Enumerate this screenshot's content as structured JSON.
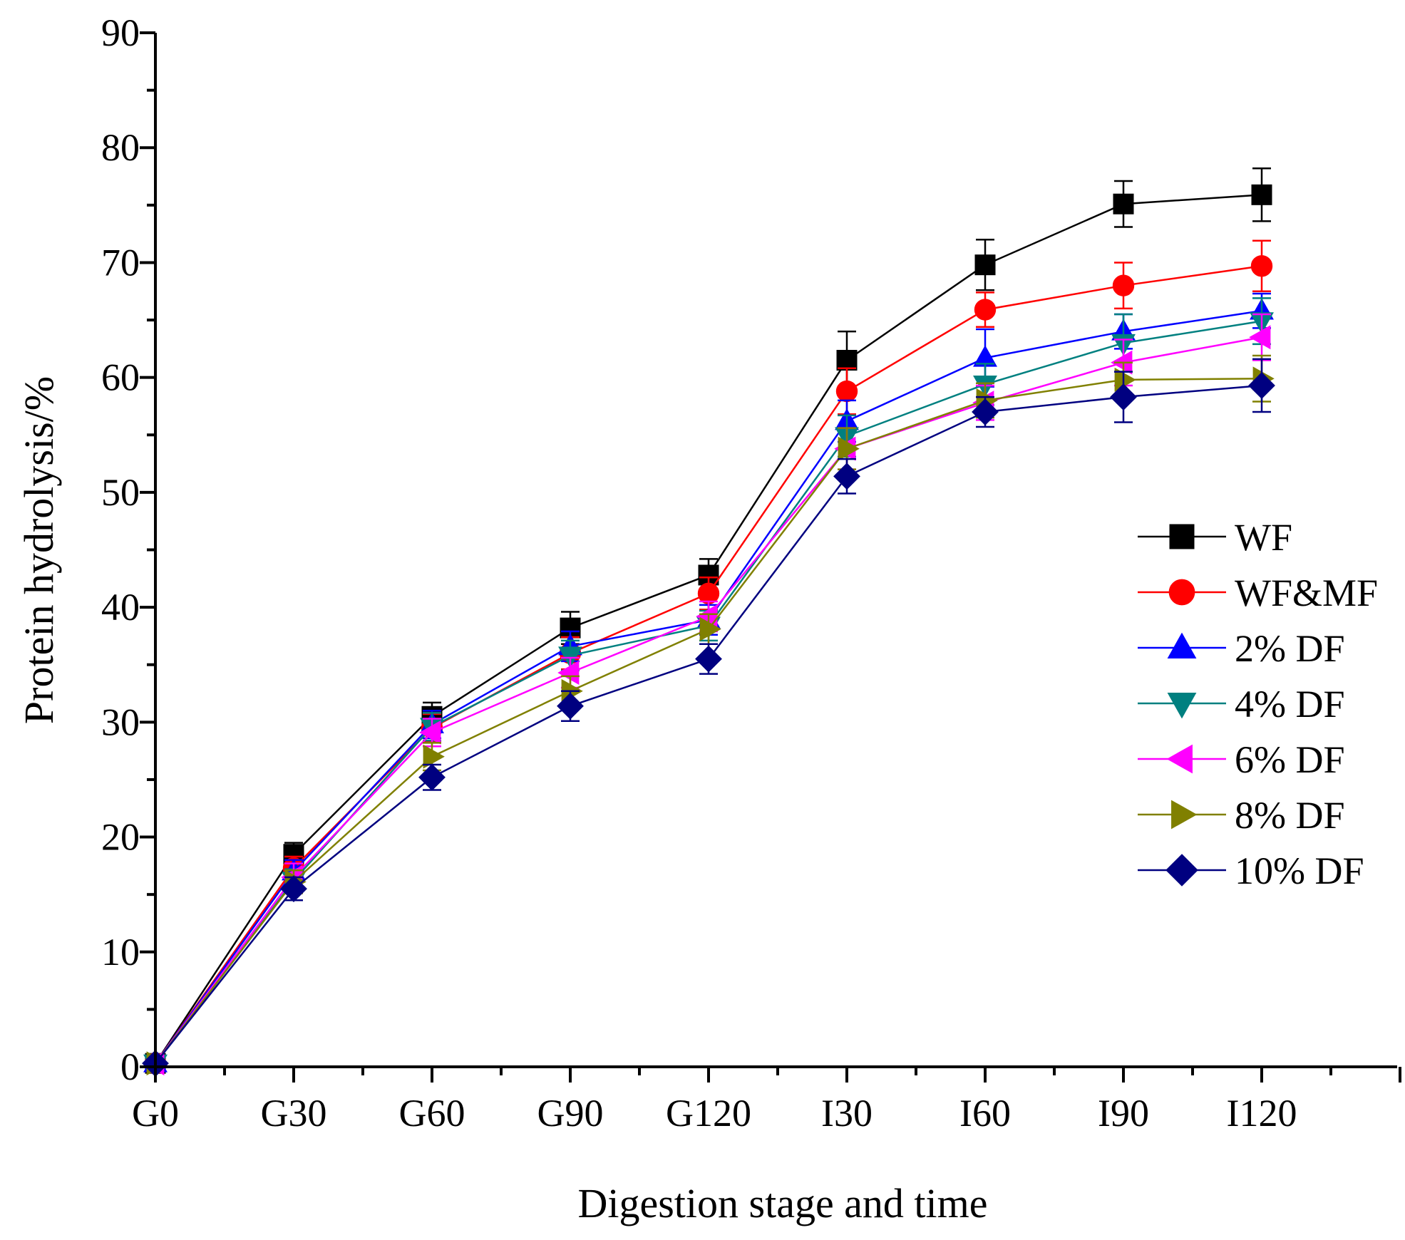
{
  "chart_data": {
    "type": "line",
    "title": "",
    "xlabel": "Digestion stage and time",
    "ylabel": "Protein hydrolysis/%",
    "categories": [
      "G0",
      "G30",
      "G60",
      "G90",
      "G120",
      "I30",
      "I60",
      "I90",
      "I120"
    ],
    "yticks": [
      "0",
      "10",
      "20",
      "30",
      "40",
      "50",
      "60",
      "70",
      "80",
      "90"
    ],
    "ylim": [
      0,
      90
    ],
    "grid": false,
    "legend_position": "right",
    "series": [
      {
        "name": "WF",
        "color": "#000000",
        "marker": "square",
        "values": [
          0.3,
          18.5,
          30.5,
          38.2,
          42.8,
          61.5,
          69.8,
          75.1,
          75.9
        ],
        "errors": [
          0.2,
          1.0,
          1.2,
          1.4,
          1.4,
          2.5,
          2.2,
          2.0,
          2.3
        ]
      },
      {
        "name": "WF&MF",
        "color": "#ff0000",
        "marker": "circle",
        "values": [
          0.3,
          17.3,
          29.5,
          36.0,
          41.2,
          58.8,
          65.9,
          68.0,
          69.7
        ],
        "errors": [
          0.2,
          1.0,
          1.2,
          1.4,
          1.4,
          2.0,
          1.5,
          2.0,
          2.2
        ]
      },
      {
        "name": "2% DF",
        "color": "#0000ff",
        "marker": "triangle-up",
        "values": [
          0.3,
          17.0,
          29.8,
          36.6,
          38.9,
          56.2,
          61.7,
          64.0,
          65.8
        ],
        "errors": [
          0.2,
          1.0,
          1.2,
          1.3,
          1.3,
          1.8,
          2.5,
          1.5,
          1.5
        ]
      },
      {
        "name": "4% DF",
        "color": "#008080",
        "marker": "triangle-down",
        "values": [
          0.3,
          16.2,
          29.6,
          35.8,
          38.4,
          54.9,
          59.4,
          63.0,
          64.9
        ],
        "errors": [
          0.2,
          1.0,
          1.2,
          1.3,
          1.3,
          1.8,
          1.8,
          2.5,
          2.0
        ]
      },
      {
        "name": "6% DF",
        "color": "#ff00ff",
        "marker": "triangle-left",
        "values": [
          0.3,
          16.5,
          29.1,
          34.3,
          39.2,
          53.8,
          57.8,
          61.3,
          63.5
        ],
        "errors": [
          0.2,
          1.2,
          1.2,
          1.3,
          1.3,
          1.8,
          1.5,
          2.0,
          2.0
        ]
      },
      {
        "name": "8% DF",
        "color": "#808000",
        "marker": "triangle-right",
        "values": [
          0.3,
          16.1,
          27.0,
          32.7,
          38.1,
          53.8,
          58.0,
          59.8,
          59.9
        ],
        "errors": [
          0.2,
          1.0,
          1.2,
          1.3,
          1.3,
          1.8,
          1.5,
          1.5,
          2.0
        ]
      },
      {
        "name": "10% DF",
        "color": "#000080",
        "marker": "diamond",
        "values": [
          0.3,
          15.5,
          25.2,
          31.4,
          35.5,
          51.4,
          57.0,
          58.3,
          59.3
        ],
        "errors": [
          0.2,
          1.0,
          1.1,
          1.3,
          1.3,
          1.5,
          1.3,
          2.2,
          2.3
        ]
      }
    ]
  }
}
